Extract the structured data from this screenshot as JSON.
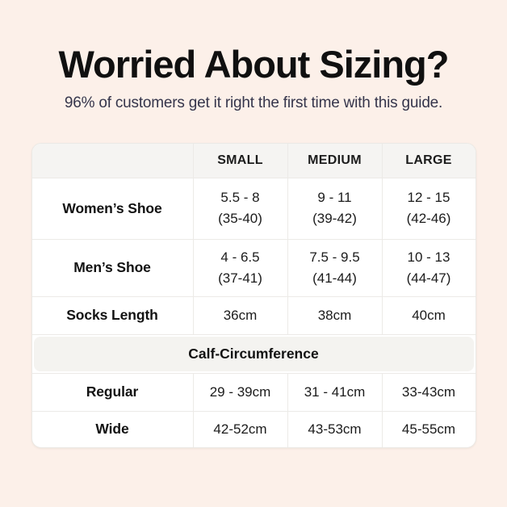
{
  "header": {
    "title": "Worried About Sizing?",
    "subtitle": "96% of customers get it right the first time with this guide."
  },
  "table": {
    "columns": [
      "SMALL",
      "MEDIUM",
      "LARGE"
    ],
    "rows": [
      {
        "label": "Women’s Shoe",
        "values": [
          "5.5 - 8",
          "9 - 11",
          "12 - 15"
        ],
        "eu": [
          "(35-40)",
          "(39-42)",
          "(42-46)"
        ]
      },
      {
        "label": "Men’s Shoe",
        "values": [
          "4 - 6.5",
          "7.5 - 9.5",
          "10 - 13"
        ],
        "eu": [
          "(37-41)",
          "(41-44)",
          "(44-47)"
        ]
      },
      {
        "label": "Socks Length",
        "values": [
          "36cm",
          "38cm",
          "40cm"
        ]
      }
    ],
    "section": {
      "label": "Calf-Circumference"
    },
    "calf_rows": [
      {
        "label": "Regular",
        "values": [
          "29 - 39cm",
          "31 - 41cm",
          "33-43cm"
        ]
      },
      {
        "label": "Wide",
        "values": [
          "42-52cm",
          "43-53cm",
          "45-55cm"
        ]
      }
    ]
  },
  "colors": {
    "page_background": "#fcf0e9",
    "table_background": "#ffffff",
    "header_row_background": "#f5f4f2",
    "section_band_background": "#f4f3f0",
    "border": "#eceae7",
    "title_text": "#101010",
    "subtitle_text": "#35354b",
    "body_text": "#1b1b1b"
  }
}
